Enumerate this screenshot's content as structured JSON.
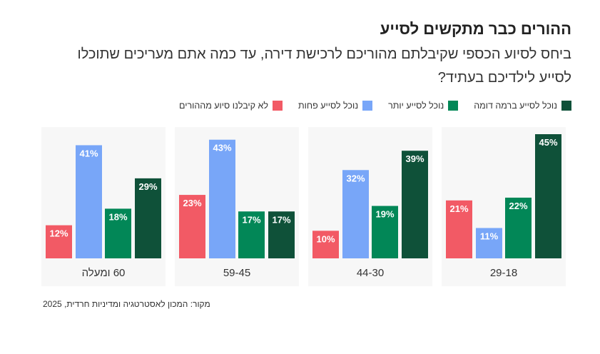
{
  "chart_data": {
    "type": "bar",
    "title": "ההורים כבר מתקשים לסייע",
    "subtitle": "ביחס לסיוע הכספי שקיבלתם מהוריכם לרכישת דירה, עד כמה אתם מעריכים שתוכלו לסייע לילדיכם בעתיד?",
    "categories": [
      "29-18",
      "44-30",
      "59-45",
      "60 ומעלה"
    ],
    "series": [
      {
        "name": "נוכל לסייע ברמה דומה",
        "color": "#0f5139",
        "values": [
          45,
          39,
          17,
          29
        ]
      },
      {
        "name": "נוכל לסייע יותר",
        "color": "#028757",
        "values": [
          22,
          19,
          17,
          18
        ]
      },
      {
        "name": "נוכל לסייע פחות",
        "color": "#78a6f8",
        "values": [
          11,
          32,
          43,
          41
        ]
      },
      {
        "name": "לא קיבלנו סיוע מההורים",
        "color": "#f25a65",
        "values": [
          21,
          10,
          23,
          12
        ]
      }
    ],
    "value_suffix": "%",
    "ylim": [
      0,
      45
    ],
    "legend": "top-right",
    "grid": false,
    "source": "מקור: המכון לאסטרטגיה ומדיניות חרדית, 2025"
  }
}
